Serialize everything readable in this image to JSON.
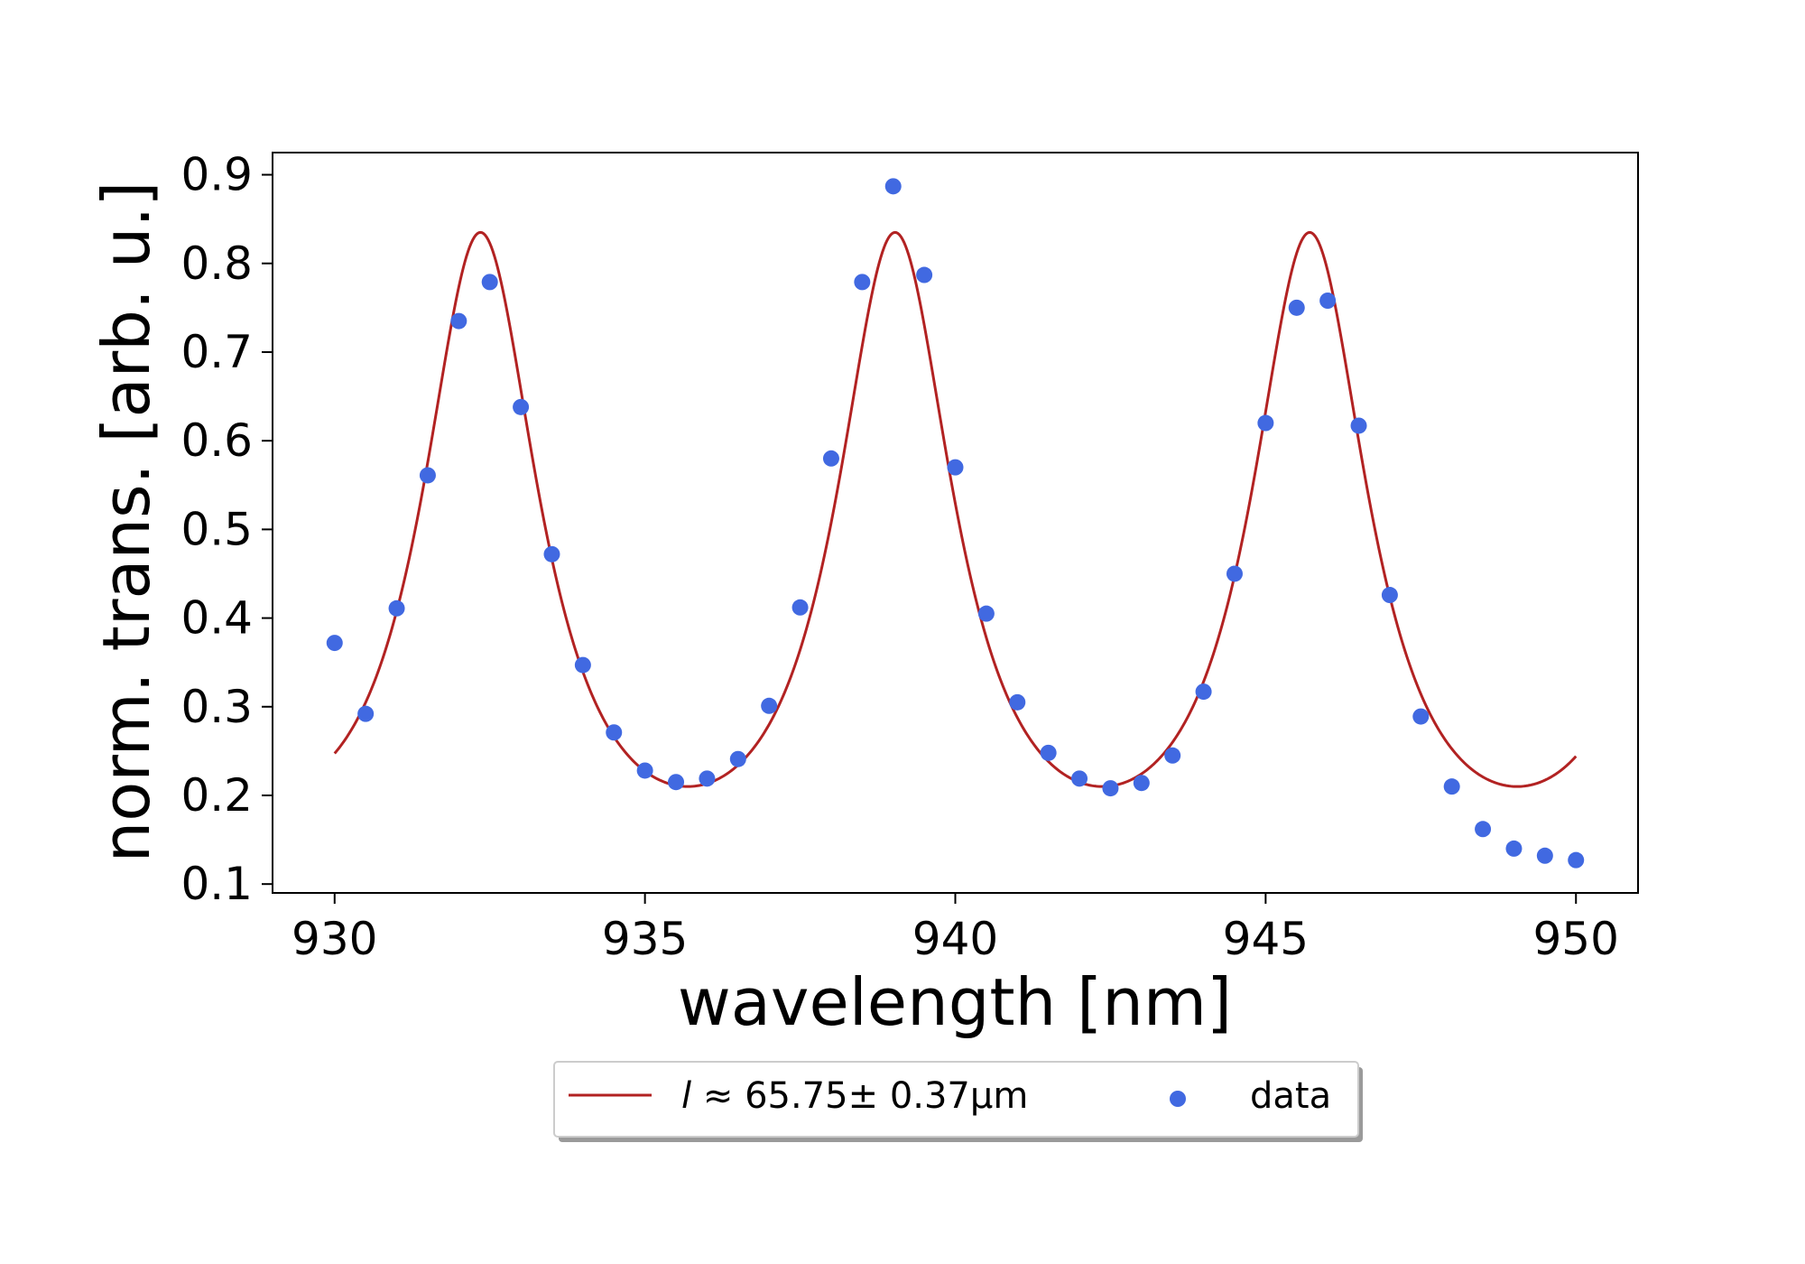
{
  "chart_data": {
    "type": "scatter",
    "title": "",
    "xlabel": "wavelength [nm]",
    "ylabel": "norm. trans. [arb. u.]",
    "xlim": [
      929,
      951
    ],
    "ylim": [
      0.09,
      0.925
    ],
    "x_ticks": [
      930,
      935,
      940,
      945,
      950
    ],
    "y_ticks": [
      0.1,
      0.2,
      0.3,
      0.4,
      0.5,
      0.6,
      0.7,
      0.8,
      0.9
    ],
    "x_tick_labels": [
      "930",
      "935",
      "940",
      "945",
      "950"
    ],
    "y_tick_labels": [
      "0.1",
      "0.2",
      "0.3",
      "0.4",
      "0.5",
      "0.6",
      "0.7",
      "0.8",
      "0.9"
    ],
    "grid": false,
    "legend_position": "bottom-center, outside plot",
    "series": [
      {
        "name": "data",
        "kind": "scatter",
        "color": "#4169e1",
        "x": [
          930.0,
          930.5,
          931.0,
          931.5,
          932.0,
          932.5,
          933.0,
          933.5,
          934.0,
          934.5,
          935.0,
          935.5,
          936.0,
          936.5,
          937.0,
          937.5,
          938.0,
          938.5,
          939.0,
          939.5,
          940.0,
          940.5,
          941.0,
          941.5,
          942.0,
          942.5,
          943.0,
          943.5,
          944.0,
          944.5,
          945.0,
          945.5,
          946.0,
          946.5,
          947.0,
          947.5,
          948.0,
          948.5,
          949.0,
          949.5,
          950.0
        ],
        "y": [
          0.372,
          0.292,
          0.411,
          0.561,
          0.735,
          0.779,
          0.638,
          0.472,
          0.347,
          0.271,
          0.228,
          0.215,
          0.219,
          0.241,
          0.301,
          0.412,
          0.58,
          0.779,
          0.887,
          0.787,
          0.57,
          0.405,
          0.305,
          0.248,
          0.219,
          0.208,
          0.214,
          0.245,
          0.317,
          0.45,
          0.62,
          0.75,
          0.758,
          0.617,
          0.426,
          0.289,
          0.21,
          0.162,
          0.14,
          0.132,
          0.127
        ]
      },
      {
        "name": "l ≈ 65.75± 0.37µm",
        "kind": "line",
        "color": "#b22222",
        "model": {
          "peaks": [
            932.35,
            938.95,
            945.72
          ],
          "period": 6.68,
          "max": 0.835,
          "min": 0.21,
          "x_range": [
            930,
            950
          ]
        }
      }
    ],
    "legend": {
      "fit_label_symbol": "l",
      "fit_label_rest": " ≈ 65.75± 0.37µm",
      "data_label": "data"
    }
  }
}
